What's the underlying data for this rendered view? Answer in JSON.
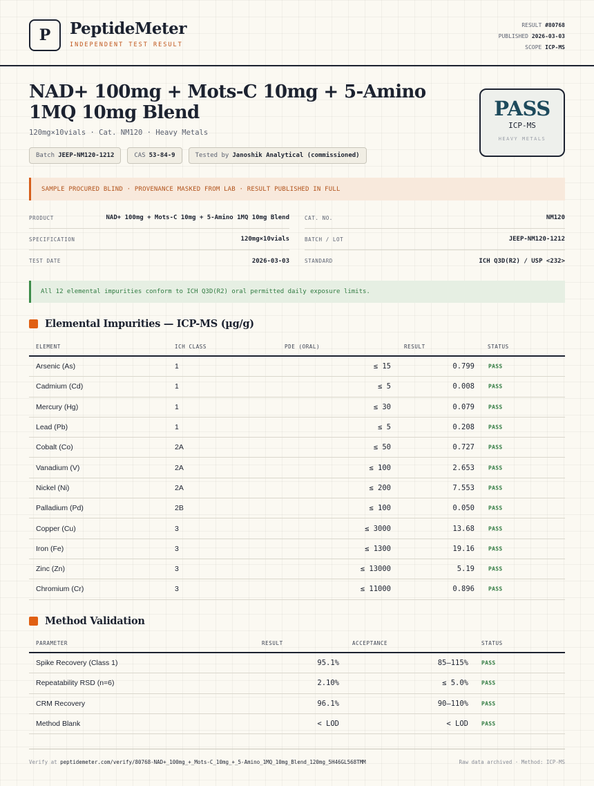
{
  "brand": {
    "logo_letter": "P",
    "name": "PeptideMeter",
    "tagline": "INDEPENDENT TEST RESULT"
  },
  "meta": {
    "result_label": "RESULT",
    "result_value": "#80768",
    "published_label": "PUBLISHED",
    "published_value": "2026-03-03",
    "scope_label": "SCOPE",
    "scope_value": "ICP-MS"
  },
  "title": "NAD+ 100mg + Mots-C 10mg + 5-Amino 1MQ 10mg Blend",
  "subtitle": "120mg×10vials · Cat. NM120 · Heavy Metals",
  "chips": [
    {
      "label": "Batch",
      "value": "JEEP-NM120-1212"
    },
    {
      "label": "CAS",
      "value": "53-84-9"
    },
    {
      "label": "Tested by",
      "value": "Janoshik Analytical (commissioned)"
    }
  ],
  "badge": {
    "result": "PASS",
    "method": "ICP-MS",
    "category": "HEAVY METALS"
  },
  "notice": "SAMPLE PROCURED BLIND · PROVENANCE MASKED FROM LAB · RESULT PUBLISHED IN FULL",
  "info_left": [
    {
      "label": "PRODUCT",
      "value": "NAD+ 100mg + Mots-C 10mg + 5-Amino 1MQ 10mg Blend"
    },
    {
      "label": "SPECIFICATION",
      "value": "120mg×10vials"
    },
    {
      "label": "TEST DATE",
      "value": "2026-03-03"
    }
  ],
  "info_right": [
    {
      "label": "CAT. NO.",
      "value": "NM120"
    },
    {
      "label": "BATCH / LOT",
      "value": "JEEP-NM120-1212"
    },
    {
      "label": "STANDARD",
      "value": "ICH Q3D(R2) / USP <232>"
    }
  ],
  "conform_text": "All 12 elemental impurities conform to ICH Q3D(R2) oral permitted daily exposure limits.",
  "impurities": {
    "heading": "Elemental Impurities — ICP-MS (µg/g)",
    "headers": {
      "element": "ELEMENT",
      "ich_class": "ICH CLASS",
      "pde": "PDE (ORAL)",
      "result": "RESULT",
      "status": "STATUS"
    },
    "rows": [
      {
        "element": "Arsenic (As)",
        "ich_class": "1",
        "pde": "≤ 15",
        "result": "0.799",
        "status": "PASS"
      },
      {
        "element": "Cadmium (Cd)",
        "ich_class": "1",
        "pde": "≤ 5",
        "result": "0.008",
        "status": "PASS"
      },
      {
        "element": "Mercury (Hg)",
        "ich_class": "1",
        "pde": "≤ 30",
        "result": "0.079",
        "status": "PASS"
      },
      {
        "element": "Lead (Pb)",
        "ich_class": "1",
        "pde": "≤ 5",
        "result": "0.208",
        "status": "PASS"
      },
      {
        "element": "Cobalt (Co)",
        "ich_class": "2A",
        "pde": "≤ 50",
        "result": "0.727",
        "status": "PASS"
      },
      {
        "element": "Vanadium (V)",
        "ich_class": "2A",
        "pde": "≤ 100",
        "result": "2.653",
        "status": "PASS"
      },
      {
        "element": "Nickel (Ni)",
        "ich_class": "2A",
        "pde": "≤ 200",
        "result": "7.553",
        "status": "PASS"
      },
      {
        "element": "Palladium (Pd)",
        "ich_class": "2B",
        "pde": "≤ 100",
        "result": "0.050",
        "status": "PASS"
      },
      {
        "element": "Copper (Cu)",
        "ich_class": "3",
        "pde": "≤ 3000",
        "result": "13.68",
        "status": "PASS"
      },
      {
        "element": "Iron (Fe)",
        "ich_class": "3",
        "pde": "≤ 1300",
        "result": "19.16",
        "status": "PASS"
      },
      {
        "element": "Zinc (Zn)",
        "ich_class": "3",
        "pde": "≤ 13000",
        "result": "5.19",
        "status": "PASS"
      },
      {
        "element": "Chromium (Cr)",
        "ich_class": "3",
        "pde": "≤ 11000",
        "result": "0.896",
        "status": "PASS"
      }
    ]
  },
  "validation": {
    "heading": "Method Validation",
    "headers": {
      "parameter": "PARAMETER",
      "result": "RESULT",
      "acceptance": "ACCEPTANCE",
      "status": "STATUS"
    },
    "rows": [
      {
        "parameter": "Spike Recovery (Class 1)",
        "result": "95.1%",
        "acceptance": "85–115%",
        "status": "PASS"
      },
      {
        "parameter": "Repeatability RSD (n=6)",
        "result": "2.10%",
        "acceptance": "≤ 5.0%",
        "status": "PASS"
      },
      {
        "parameter": "CRM Recovery",
        "result": "96.1%",
        "acceptance": "90–110%",
        "status": "PASS"
      },
      {
        "parameter": "Method Blank",
        "result": "< LOD",
        "acceptance": "< LOD",
        "status": "PASS"
      }
    ]
  },
  "footer": {
    "verify_prefix": "Verify at",
    "verify_url": "peptidemeter.com/verify/80768-NAD+_100mg_+_Mots-C_10mg_+_5-Amino_1MQ_10mg_Blend_120mg_5H46GL568TMM",
    "right_text": "Raw data archived · Method: ICP-MS"
  },
  "colors": {
    "accent": "#e05f12",
    "pass_green": "#2f7a40",
    "ink": "#1c2230",
    "badge_blue": "#1d4a5c"
  }
}
